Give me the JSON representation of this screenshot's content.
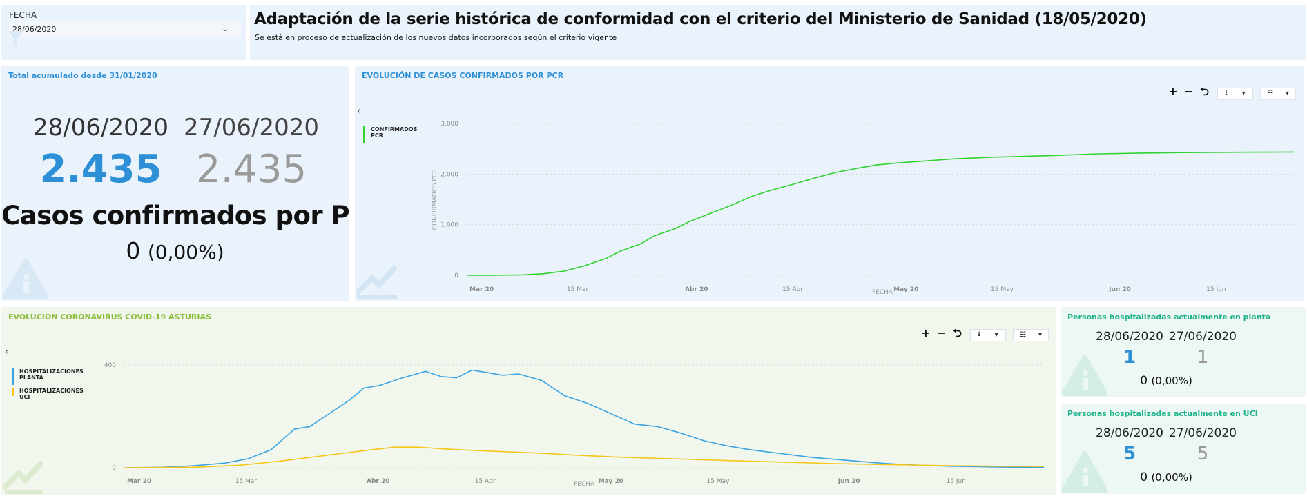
{
  "filter": {
    "label": "FECHA",
    "value": "28/06/2020"
  },
  "header": {
    "title": "Adaptación de la serie histórica de conformidad con el criterio del Ministerio de Sanidad (18/05/2020)",
    "subtitle": "Se está en proceso de actualización de los nuevos datos incorporados según el criterio vigente"
  },
  "kpi_total": {
    "title": "Total acumulado desde 31/01/2020",
    "date_current": "28/06/2020",
    "date_previous": "27/06/2020",
    "value_current": "2.435",
    "value_previous": "2.435",
    "metric": "Casos confirmados por PCR",
    "delta": "0",
    "delta_pct": "(0,00%)"
  },
  "kpi_planta": {
    "title": "Personas hospitalizadas actualmente en planta",
    "date_current": "28/06/2020",
    "date_previous": "27/06/2020",
    "value_current": "1",
    "value_previous": "1",
    "delta": "0",
    "delta_pct": "(0,00%)"
  },
  "kpi_uci": {
    "title": "Personas hospitalizadas actualmente en UCI",
    "date_current": "28/06/2020",
    "date_previous": "27/06/2020",
    "value_current": "5",
    "value_previous": "5",
    "delta": "0",
    "delta_pct": "(0,00%)"
  },
  "toolbar": {
    "zoom": "+ − ⮌",
    "download_icon": "download-icon",
    "settings_icon": "sliders-icon",
    "caret": "▾"
  },
  "colors": {
    "accent_blue": "#2d8fd5",
    "green_line": "#2fd22f",
    "planta_line": "#3aa3e3",
    "uci_line": "#f5c518",
    "green_title": "#8bbd3a",
    "mint_title": "#20b38b"
  },
  "chart_data": [
    {
      "type": "line",
      "title": "EVOLUCIÓN DE CASOS CONFIRMADOS POR PCR",
      "xlabel": "FECHA",
      "ylabel": "CONFIRMADOS PCR",
      "ylim": [
        0,
        3000
      ],
      "yticks": [
        "0",
        "1.000",
        "2.000",
        "3.000"
      ],
      "xticks": [
        "Mar 20",
        "15 Mar",
        "Abr 20",
        "15 Abr",
        "May 20",
        "15 May",
        "Jun 20",
        "15 Jun"
      ],
      "x_start": "2020-03-01",
      "x_end": "2020-06-28",
      "grid": true,
      "legend_position": "left",
      "series": [
        {
          "name": "CONFIRMADOS PCR",
          "color": "#2fd22f",
          "points": [
            [
              "2020-03-01",
              0
            ],
            [
              "2020-03-05",
              1
            ],
            [
              "2020-03-09",
              8
            ],
            [
              "2020-03-12",
              30
            ],
            [
              "2020-03-15",
              80
            ],
            [
              "2020-03-18",
              190
            ],
            [
              "2020-03-21",
              330
            ],
            [
              "2020-03-23",
              470
            ],
            [
              "2020-03-26",
              620
            ],
            [
              "2020-03-28",
              780
            ],
            [
              "2020-03-31",
              920
            ],
            [
              "2020-04-02",
              1060
            ],
            [
              "2020-04-05",
              1220
            ],
            [
              "2020-04-08",
              1380
            ],
            [
              "2020-04-11",
              1560
            ],
            [
              "2020-04-14",
              1690
            ],
            [
              "2020-04-17",
              1800
            ],
            [
              "2020-04-20",
              1920
            ],
            [
              "2020-04-23",
              2030
            ],
            [
              "2020-04-26",
              2110
            ],
            [
              "2020-04-29",
              2180
            ],
            [
              "2020-05-02",
              2220
            ],
            [
              "2020-05-06",
              2260
            ],
            [
              "2020-05-10",
              2300
            ],
            [
              "2020-05-15",
              2330
            ],
            [
              "2020-05-20",
              2350
            ],
            [
              "2020-05-25",
              2370
            ],
            [
              "2020-05-31",
              2400
            ],
            [
              "2020-06-06",
              2415
            ],
            [
              "2020-06-12",
              2425
            ],
            [
              "2020-06-20",
              2432
            ],
            [
              "2020-06-28",
              2435
            ]
          ]
        }
      ]
    },
    {
      "type": "line",
      "title": "EVOLUCIÓN CORONAVIRUS COVID-19 ASTURIAS",
      "xlabel": "FECHA",
      "ylim": [
        0,
        400
      ],
      "yticks": [
        "0",
        "400"
      ],
      "xticks": [
        "Mar 20",
        "15 Mar",
        "Abr 20",
        "15 Abr",
        "May 20",
        "15 May",
        "Jun 20",
        "15 Jun"
      ],
      "x_start": "2020-03-01",
      "x_end": "2020-06-28",
      "grid": true,
      "legend_position": "left",
      "series": [
        {
          "name": "HOSPITALIZACIONES PLANTA",
          "color": "#3aa3e3",
          "points": [
            [
              "2020-03-01",
              0
            ],
            [
              "2020-03-06",
              2
            ],
            [
              "2020-03-10",
              8
            ],
            [
              "2020-03-14",
              18
            ],
            [
              "2020-03-17",
              35
            ],
            [
              "2020-03-20",
              70
            ],
            [
              "2020-03-23",
              150
            ],
            [
              "2020-03-25",
              160
            ],
            [
              "2020-03-27",
              200
            ],
            [
              "2020-03-30",
              260
            ],
            [
              "2020-04-01",
              310
            ],
            [
              "2020-04-03",
              320
            ],
            [
              "2020-04-06",
              350
            ],
            [
              "2020-04-09",
              375
            ],
            [
              "2020-04-11",
              355
            ],
            [
              "2020-04-13",
              350
            ],
            [
              "2020-04-15",
              380
            ],
            [
              "2020-04-17",
              370
            ],
            [
              "2020-04-19",
              360
            ],
            [
              "2020-04-21",
              365
            ],
            [
              "2020-04-24",
              340
            ],
            [
              "2020-04-27",
              280
            ],
            [
              "2020-04-30",
              250
            ],
            [
              "2020-05-03",
              210
            ],
            [
              "2020-05-06",
              170
            ],
            [
              "2020-05-09",
              160
            ],
            [
              "2020-05-12",
              135
            ],
            [
              "2020-05-15",
              105
            ],
            [
              "2020-05-18",
              85
            ],
            [
              "2020-05-21",
              70
            ],
            [
              "2020-05-25",
              55
            ],
            [
              "2020-05-29",
              40
            ],
            [
              "2020-06-02",
              30
            ],
            [
              "2020-06-06",
              20
            ],
            [
              "2020-06-10",
              12
            ],
            [
              "2020-06-16",
              6
            ],
            [
              "2020-06-22",
              3
            ],
            [
              "2020-06-28",
              1
            ]
          ]
        },
        {
          "name": "HOSPITALIZACIONES UCI",
          "color": "#f5c518",
          "points": [
            [
              "2020-03-01",
              0
            ],
            [
              "2020-03-10",
              2
            ],
            [
              "2020-03-16",
              10
            ],
            [
              "2020-03-21",
              25
            ],
            [
              "2020-03-25",
              40
            ],
            [
              "2020-03-29",
              55
            ],
            [
              "2020-04-02",
              70
            ],
            [
              "2020-04-05",
              80
            ],
            [
              "2020-04-08",
              80
            ],
            [
              "2020-04-12",
              72
            ],
            [
              "2020-04-17",
              65
            ],
            [
              "2020-04-23",
              58
            ],
            [
              "2020-04-29",
              48
            ],
            [
              "2020-05-05",
              40
            ],
            [
              "2020-05-11",
              35
            ],
            [
              "2020-05-18",
              28
            ],
            [
              "2020-05-25",
              22
            ],
            [
              "2020-06-01",
              16
            ],
            [
              "2020-06-08",
              12
            ],
            [
              "2020-06-16",
              8
            ],
            [
              "2020-06-22",
              6
            ],
            [
              "2020-06-28",
              5
            ]
          ]
        }
      ]
    }
  ]
}
